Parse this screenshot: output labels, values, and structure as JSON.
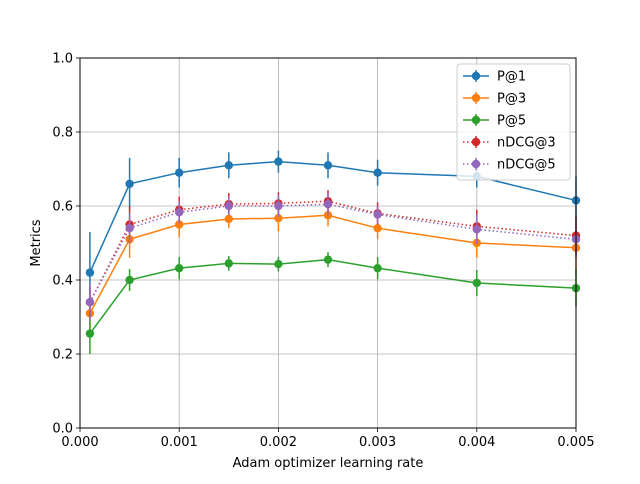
{
  "chart_data": {
    "type": "line",
    "title": "",
    "xlabel": "Adam optimizer learning rate",
    "ylabel": "Metrics",
    "xlim": [
      0.0,
      0.005
    ],
    "ylim": [
      0.0,
      1.0
    ],
    "grid": true,
    "legend_placement": "top-right",
    "x_ticks": [
      0.0,
      0.001,
      0.002,
      0.003,
      0.004,
      0.005
    ],
    "x_tick_labels": [
      "0.000",
      "0.001",
      "0.002",
      "0.003",
      "0.004",
      "0.005"
    ],
    "y_ticks": [
      0.0,
      0.2,
      0.4,
      0.6,
      0.8,
      1.0
    ],
    "y_tick_labels": [
      "0.0",
      "0.2",
      "0.4",
      "0.6",
      "0.8",
      "1.0"
    ],
    "x": [
      0.0001,
      0.0005,
      0.001,
      0.0015,
      0.002,
      0.0025,
      0.003,
      0.004,
      0.005
    ],
    "series": [
      {
        "name": "P@1",
        "color": "#1f77b4",
        "linestyle": "solid",
        "values": [
          0.42,
          0.66,
          0.69,
          0.71,
          0.72,
          0.71,
          0.69,
          0.68,
          0.615
        ],
        "errors": [
          0.11,
          0.07,
          0.04,
          0.035,
          0.03,
          0.035,
          0.035,
          0.03,
          0.065
        ]
      },
      {
        "name": "P@3",
        "color": "#ff7f0e",
        "linestyle": "solid",
        "values": [
          0.31,
          0.51,
          0.55,
          0.565,
          0.567,
          0.575,
          0.54,
          0.5,
          0.487
        ],
        "errors": [
          0.05,
          0.05,
          0.035,
          0.025,
          0.035,
          0.03,
          0.03,
          0.04,
          0.07
        ]
      },
      {
        "name": "P@5",
        "color": "#2ca02c",
        "linestyle": "solid",
        "values": [
          0.255,
          0.4,
          0.432,
          0.445,
          0.443,
          0.455,
          0.432,
          0.392,
          0.378
        ],
        "errors": [
          0.055,
          0.03,
          0.03,
          0.02,
          0.02,
          0.02,
          0.03,
          0.035,
          0.05
        ]
      },
      {
        "name": "nDCG@3",
        "color": "#d62728",
        "linestyle": "dotted",
        "values": [
          0.34,
          0.55,
          0.59,
          0.605,
          0.607,
          0.613,
          0.58,
          0.545,
          0.52
        ],
        "errors": [
          0.04,
          0.05,
          0.035,
          0.03,
          0.03,
          0.03,
          0.03,
          0.045,
          0.055
        ]
      },
      {
        "name": "nDCG@5",
        "color": "#9467bd",
        "linestyle": "dotted",
        "values": [
          0.34,
          0.54,
          0.583,
          0.6,
          0.6,
          0.605,
          0.577,
          0.537,
          0.51
        ],
        "errors": [
          0.05,
          0.04,
          0.03,
          0.025,
          0.03,
          0.03,
          0.025,
          0.04,
          0.05
        ]
      }
    ]
  }
}
